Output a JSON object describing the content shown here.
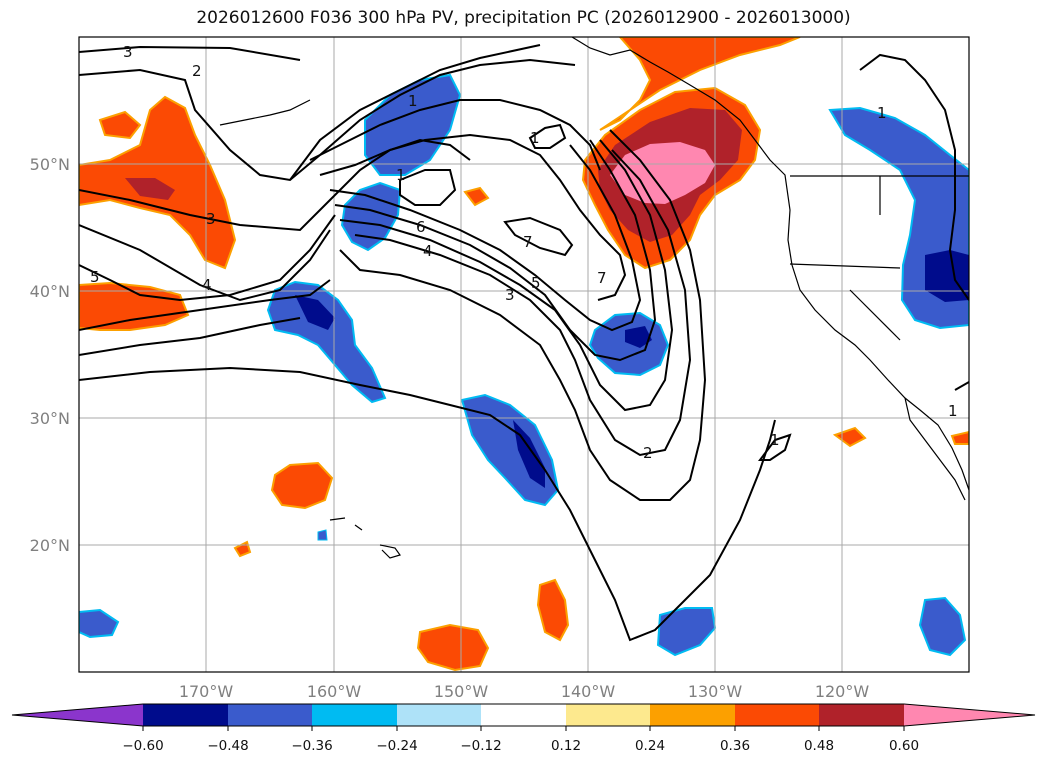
{
  "title": "2026012600 F036 300 hPa PV, precipitation PC (2026012900 - 2026013000)",
  "colors": {
    "neg_060": "#8b35cc",
    "neg_048": "#000c8c",
    "neg_036": "#3a5bcc",
    "neg_024": "#00bbf2",
    "neg_012": "#aee2f8",
    "neutral": "#ffffff",
    "pos_012": "#fde98e",
    "pos_024": "#fca000",
    "pos_036": "#fb4a04",
    "pos_048": "#b0222a",
    "pos_060": "#ff87b0"
  },
  "chart_data": {
    "type": "map",
    "map_extent": {
      "lon": [
        -180,
        -110
      ],
      "lat": [
        10,
        60
      ]
    },
    "lon_ticks": [
      "170°W",
      "160°W",
      "150°W",
      "140°W",
      "130°W",
      "120°W"
    ],
    "lat_ticks": [
      "50°N",
      "40°N",
      "30°N",
      "20°N"
    ],
    "grid": true,
    "colorbar": {
      "orientation": "horizontal",
      "extend": "both",
      "levels": [
        "−0.60",
        "−0.48",
        "−0.36",
        "−0.24",
        "−0.12",
        "0.12",
        "0.24",
        "0.36",
        "0.48",
        "0.60"
      ]
    },
    "contour_labels": [
      "3",
      "2",
      "1",
      "1",
      "3",
      "4",
      "5",
      "6",
      "4",
      "7",
      "5",
      "3",
      "7",
      "2",
      "1",
      "1",
      "1",
      "1"
    ]
  }
}
